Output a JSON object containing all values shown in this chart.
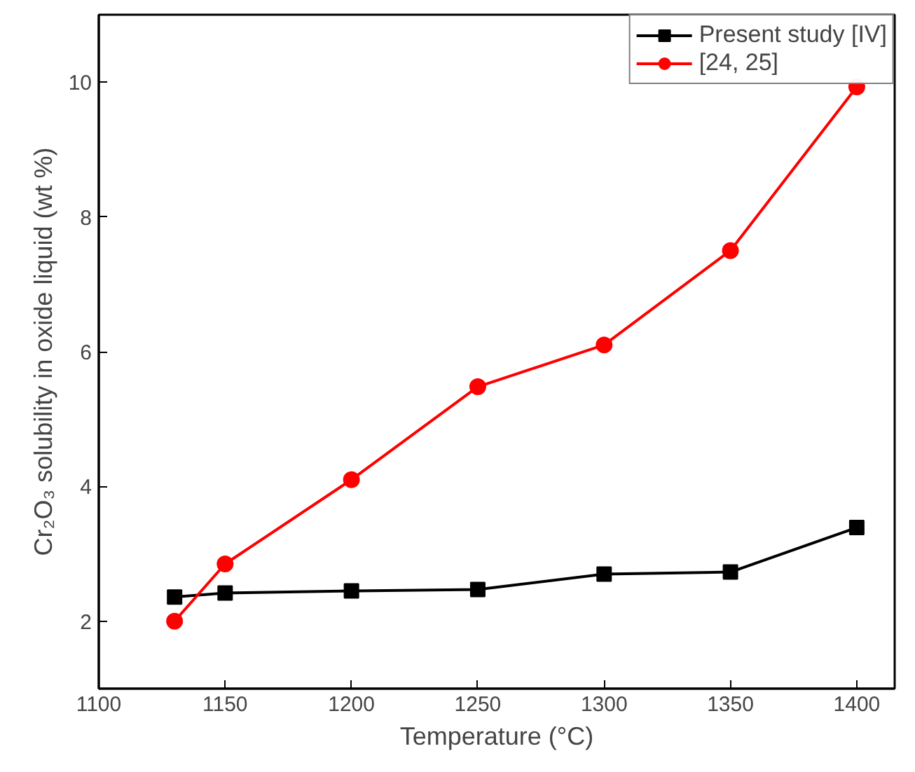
{
  "chart_data": {
    "type": "line",
    "xlabel": "Temperature (°C)",
    "ylabel": "Cr₂O₃ solubility in oxide liquid (wt %)",
    "xlim": [
      1100,
      1415
    ],
    "ylim": [
      1,
      11
    ],
    "xticks": [
      1100,
      1150,
      1200,
      1250,
      1300,
      1350,
      1400
    ],
    "yticks": [
      2,
      4,
      6,
      8,
      10
    ],
    "grid": false,
    "legend": "top right",
    "line_style": "solid",
    "series": [
      {
        "name": "Present study [IV]",
        "color": "#000000",
        "marker": "square",
        "x": [
          1130,
          1150,
          1200,
          1250,
          1300,
          1350,
          1400
        ],
        "values": [
          2.36,
          2.42,
          2.45,
          2.47,
          2.7,
          2.73,
          3.39
        ]
      },
      {
        "name": "[24, 25]",
        "color": "#ff0000",
        "marker": "circle",
        "x": [
          1130,
          1150,
          1200,
          1250,
          1300,
          1350,
          1400
        ],
        "values": [
          2.0,
          2.85,
          4.1,
          5.48,
          6.1,
          7.5,
          9.93
        ]
      }
    ]
  }
}
